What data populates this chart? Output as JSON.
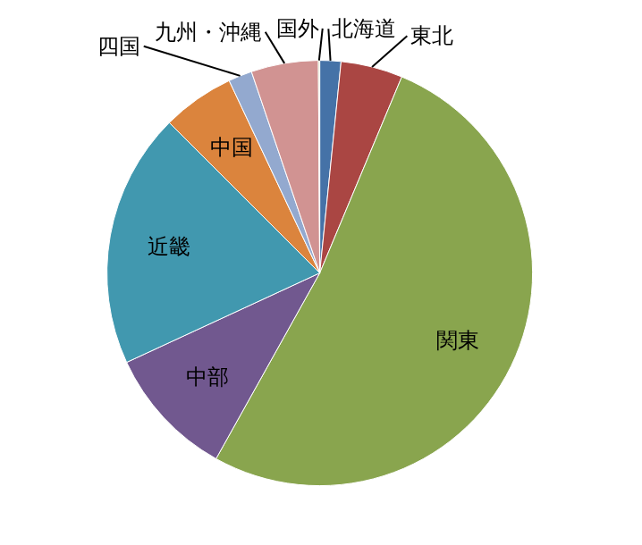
{
  "chart_data": {
    "type": "pie",
    "categories": [
      "北海道",
      "東北",
      "関東",
      "中部",
      "近畿",
      "中国",
      "四国",
      "九州・沖縄",
      "国外"
    ],
    "values": [
      1.6,
      4.7,
      51.8,
      10.0,
      19.4,
      5.5,
      1.8,
      5.1,
      0.1
    ],
    "colors": [
      "#4572a7",
      "#aa4643",
      "#89a54e",
      "#71588f",
      "#4198af",
      "#db843d",
      "#93a9cf",
      "#d19392",
      "#b9cd96"
    ],
    "legend": false
  }
}
